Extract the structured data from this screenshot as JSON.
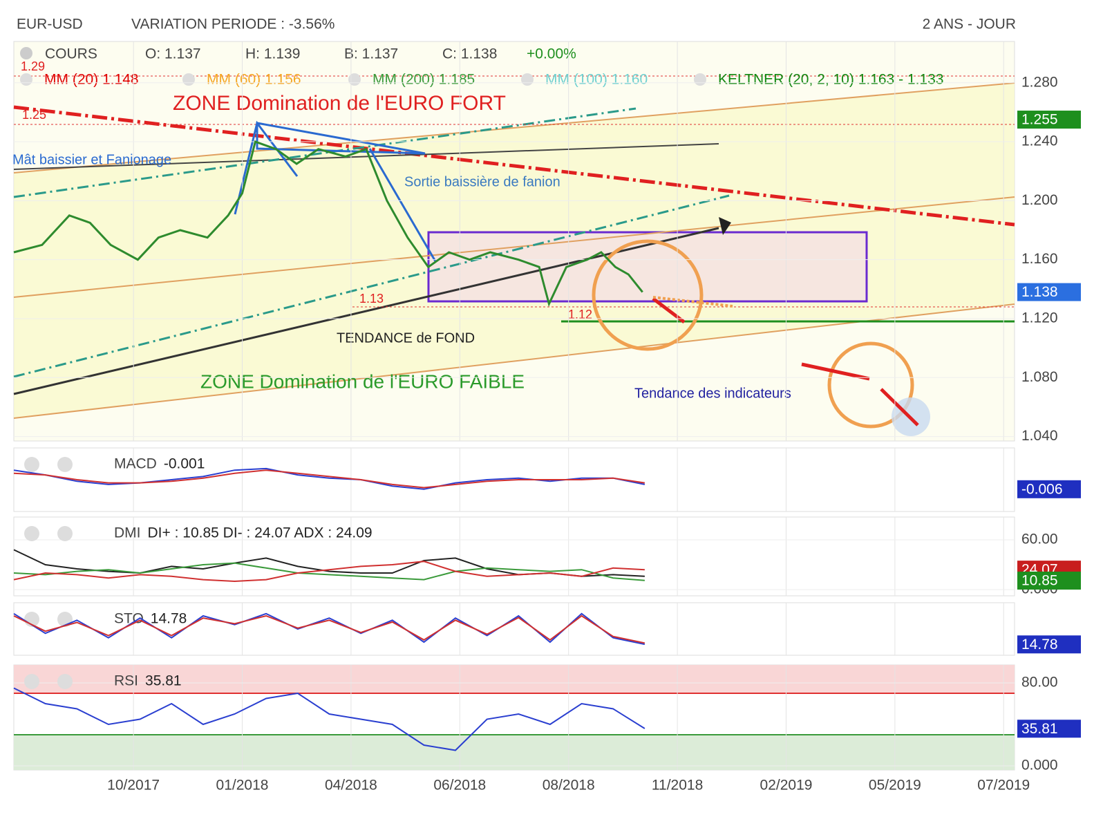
{
  "header": {
    "symbol": "EUR-USD",
    "variation": "VARIATION PERIODE : -3.56%",
    "period": "2 ANS - JOUR"
  },
  "chart_data": [
    {
      "type": "line",
      "panel": "price",
      "quote": [
        "COURS",
        "O: 1.137",
        "H: 1.139",
        "B: 1.137",
        "C: 1.138",
        "+0.00%"
      ],
      "indicators": [
        {
          "name": "MM (20) 1.148",
          "color": "#e00000"
        },
        {
          "name": "MM (60) 1.156",
          "color": "#f5a623"
        },
        {
          "name": "MM (200) 1.185",
          "color": "#3a9a3a"
        },
        {
          "name": "MM (100) 1.160",
          "color": "#6fd0d0"
        },
        {
          "name": "KELTNER (20, 2, 10) 1.163 - 1.133",
          "color": "#118811"
        }
      ],
      "annotations": [
        "ZONE Domination de l'EURO FORT",
        "Mât baissier et Fanionage",
        "Sortie baissière de fanion",
        "TENDANCE de FOND",
        "ZONE Domination de l'EURO FAIBLE",
        "Tendance des indicateurs",
        "1.29",
        "1.25",
        "1.13",
        "1.12"
      ],
      "xlim": [
        -1.1,
        8.1
      ],
      "ylim": [
        1.037,
        1.308
      ],
      "yticks": [
        {
          "value": 1.28,
          "label": "1.280"
        },
        {
          "value": 1.24,
          "label": "1.240"
        },
        {
          "value": 1.2,
          "label": "1.200"
        },
        {
          "value": 1.16,
          "label": "1.160"
        },
        {
          "value": 1.12,
          "label": "1.120"
        },
        {
          "value": 1.08,
          "label": "1.080"
        },
        {
          "value": 1.04,
          "label": "1.040"
        }
      ],
      "x": [
        -1.1,
        -0.84,
        -0.59,
        -0.4,
        -0.21,
        0.04,
        0.23,
        0.43,
        0.68,
        0.87,
        1.0,
        1.12,
        1.31,
        1.5,
        1.7,
        1.95,
        2.14,
        2.33,
        2.52,
        2.71,
        2.9,
        3.09,
        3.28,
        3.54,
        3.73,
        3.82,
        3.98,
        4.17,
        4.3,
        4.43,
        4.55,
        4.68
      ],
      "series": [
        {
          "color": "#2e8b2e",
          "values": [
            1.165,
            1.17,
            1.19,
            1.185,
            1.17,
            1.16,
            1.175,
            1.18,
            1.175,
            1.19,
            1.205,
            1.24,
            1.235,
            1.225,
            1.235,
            1.23,
            1.235,
            1.2,
            1.175,
            1.155,
            1.165,
            1.16,
            1.165,
            1.16,
            1.155,
            1.13,
            1.155,
            1.16,
            1.165,
            1.155,
            1.15,
            1.138
          ]
        }
      ],
      "flags": [
        {
          "value": 1.255,
          "label": "1.255",
          "color": "#1e8f1e"
        },
        {
          "value": 1.138,
          "label": "1.138",
          "color": "#2b6fe0"
        }
      ]
    },
    {
      "type": "line",
      "panel": "macd",
      "title": "MACD",
      "reading": "-0.001",
      "xlim": [
        -1.1,
        8.1
      ],
      "ylim": [
        -0.02,
        0.02
      ],
      "x": [
        -1.1,
        -0.81,
        -0.52,
        -0.23,
        0.06,
        0.35,
        0.64,
        0.93,
        1.22,
        1.51,
        1.8,
        2.09,
        2.38,
        2.67,
        2.96,
        3.25,
        3.54,
        3.83,
        4.12,
        4.41,
        4.7
      ],
      "series": [
        {
          "color": "#2a3fd0",
          "values": [
            0.006,
            0.003,
            -0.001,
            -0.003,
            -0.002,
            0.0,
            0.002,
            0.006,
            0.007,
            0.003,
            0.001,
            0.0,
            -0.004,
            -0.006,
            -0.002,
            0.0,
            0.001,
            -0.001,
            0.001,
            0.001,
            -0.003
          ]
        },
        {
          "color": "#d03030",
          "values": [
            0.004,
            0.003,
            0.0,
            -0.002,
            -0.002,
            -0.001,
            0.001,
            0.004,
            0.006,
            0.004,
            0.002,
            0.0,
            -0.003,
            -0.005,
            -0.003,
            -0.001,
            0.0,
            0.0,
            0.0,
            0.001,
            -0.002
          ]
        }
      ],
      "flags": [
        {
          "value": -0.006,
          "label": "-0.006",
          "color": "#1f2fc0"
        }
      ]
    },
    {
      "type": "line",
      "panel": "dmi",
      "title": "DMI",
      "reading": "DI+ : 10.85 DI- : 24.07 ADX : 24.09",
      "xlim": [
        -1.1,
        8.1
      ],
      "ylim": [
        -7.5,
        87.5
      ],
      "yticks": [
        {
          "value": 60,
          "label": "60.00"
        },
        {
          "value": 0,
          "label": "0.000"
        }
      ],
      "x": [
        -1.1,
        -0.81,
        -0.52,
        -0.23,
        0.06,
        0.35,
        0.64,
        0.93,
        1.22,
        1.51,
        1.8,
        2.09,
        2.38,
        2.67,
        2.96,
        3.25,
        3.54,
        3.83,
        4.12,
        4.41,
        4.7
      ],
      "series": [
        {
          "color": "#222222",
          "values": [
            48,
            30,
            25,
            22,
            20,
            28,
            25,
            32,
            38,
            28,
            22,
            20,
            20,
            35,
            38,
            25,
            18,
            20,
            16,
            18,
            16
          ]
        },
        {
          "color": "#3a9a3a",
          "values": [
            20,
            18,
            22,
            24,
            20,
            25,
            30,
            32,
            26,
            20,
            18,
            16,
            14,
            12,
            22,
            26,
            24,
            22,
            24,
            14,
            11
          ]
        },
        {
          "color": "#d03030",
          "values": [
            12,
            20,
            18,
            14,
            18,
            16,
            12,
            10,
            12,
            20,
            24,
            28,
            30,
            34,
            22,
            16,
            18,
            20,
            16,
            26,
            24
          ]
        }
      ],
      "flags": [
        {
          "value": 24.07,
          "label": "24.07",
          "color": "#c81e1e"
        },
        {
          "value": 10.85,
          "label": "10.85",
          "color": "#1e8f1e"
        }
      ]
    },
    {
      "type": "line",
      "panel": "sto",
      "title": "STO",
      "reading": "14.78",
      "xlim": [
        -1.1,
        8.1
      ],
      "ylim": [
        -10,
        110
      ],
      "x": [
        -1.1,
        -0.81,
        -0.52,
        -0.23,
        0.06,
        0.35,
        0.64,
        0.93,
        1.22,
        1.51,
        1.8,
        2.09,
        2.38,
        2.67,
        2.96,
        3.25,
        3.54,
        3.83,
        4.12,
        4.41,
        4.7
      ],
      "series": [
        {
          "color": "#2a3fd0",
          "values": [
            85,
            40,
            70,
            30,
            75,
            30,
            80,
            60,
            85,
            50,
            75,
            40,
            70,
            20,
            75,
            35,
            80,
            20,
            85,
            30,
            15
          ]
        },
        {
          "color": "#d03030",
          "values": [
            80,
            45,
            65,
            35,
            70,
            35,
            75,
            62,
            80,
            52,
            70,
            42,
            66,
            25,
            70,
            38,
            76,
            25,
            80,
            33,
            18
          ]
        }
      ],
      "flags": [
        {
          "value": 14.78,
          "label": "14.78",
          "color": "#1f2fc0"
        }
      ]
    },
    {
      "type": "line",
      "panel": "rsi",
      "title": "RSI",
      "reading": "35.81",
      "xlim": [
        -1.1,
        8.1
      ],
      "ylim": [
        -4,
        97.3
      ],
      "xticks": [
        {
          "value": 0,
          "label": "10/2017"
        },
        {
          "value": 1,
          "label": "01/2018"
        },
        {
          "value": 2,
          "label": "04/2018"
        },
        {
          "value": 3,
          "label": "06/2018"
        },
        {
          "value": 4,
          "label": "08/2018"
        },
        {
          "value": 5,
          "label": "11/2018"
        },
        {
          "value": 6,
          "label": "02/2019"
        },
        {
          "value": 7,
          "label": "05/2019"
        },
        {
          "value": 8,
          "label": "07/2019"
        }
      ],
      "yticks": [
        {
          "value": 80,
          "label": "80.00"
        },
        {
          "value": 0,
          "label": "0.000"
        }
      ],
      "overbought": 70,
      "oversold": 30,
      "x": [
        -1.1,
        -0.81,
        -0.52,
        -0.23,
        0.06,
        0.35,
        0.64,
        0.93,
        1.22,
        1.51,
        1.8,
        2.09,
        2.38,
        2.67,
        2.96,
        3.25,
        3.54,
        3.83,
        4.12,
        4.41,
        4.7
      ],
      "series": [
        {
          "color": "#2a3fd0",
          "values": [
            75,
            60,
            55,
            40,
            45,
            60,
            40,
            50,
            65,
            70,
            50,
            45,
            40,
            20,
            15,
            45,
            50,
            40,
            60,
            55,
            36
          ]
        }
      ],
      "flags": [
        {
          "value": 35.81,
          "label": "35.81",
          "color": "#1f2fc0"
        }
      ]
    }
  ]
}
